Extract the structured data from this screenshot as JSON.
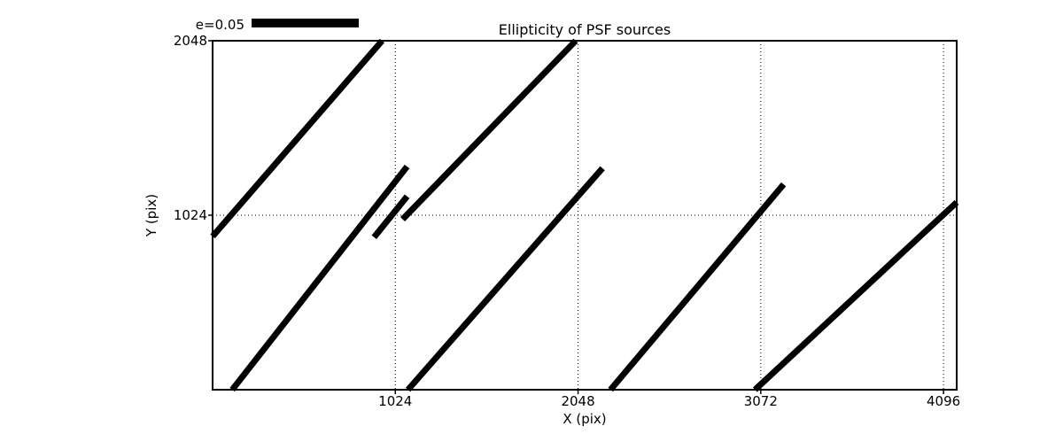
{
  "title": "Ellipticity of PSF sources",
  "axes": {
    "xlabel": "X (pix)",
    "ylabel": "Y (pix)"
  },
  "legend": {
    "label": "e=0.05"
  },
  "colors": {
    "foreground": "#000000",
    "background": "#ffffff"
  },
  "chart_data": {
    "type": "line",
    "title": "Ellipticity of PSF sources",
    "xlabel": "X (pix)",
    "ylabel": "Y (pix)",
    "xlim": [
      0,
      4170
    ],
    "ylim": [
      0,
      2048
    ],
    "x_ticks": [
      1024,
      2048,
      3072,
      4096
    ],
    "y_ticks": [
      1024,
      2048
    ],
    "grid": "dotted",
    "legend": {
      "label": "e=0.05",
      "position": "top-left-outside",
      "bar_length_pix": 600
    },
    "segments": [
      {
        "x1": 0,
        "y1": 900,
        "x2": 950,
        "y2": 2048
      },
      {
        "x1": 110,
        "y1": 0,
        "x2": 1090,
        "y2": 1310
      },
      {
        "x1": 905,
        "y1": 895,
        "x2": 1090,
        "y2": 1135
      },
      {
        "x1": 1065,
        "y1": 1000,
        "x2": 2035,
        "y2": 2048
      },
      {
        "x1": 1095,
        "y1": 0,
        "x2": 2185,
        "y2": 1300
      },
      {
        "x1": 2230,
        "y1": 0,
        "x2": 3200,
        "y2": 1205
      },
      {
        "x1": 3040,
        "y1": 0,
        "x2": 4170,
        "y2": 1100
      }
    ]
  }
}
